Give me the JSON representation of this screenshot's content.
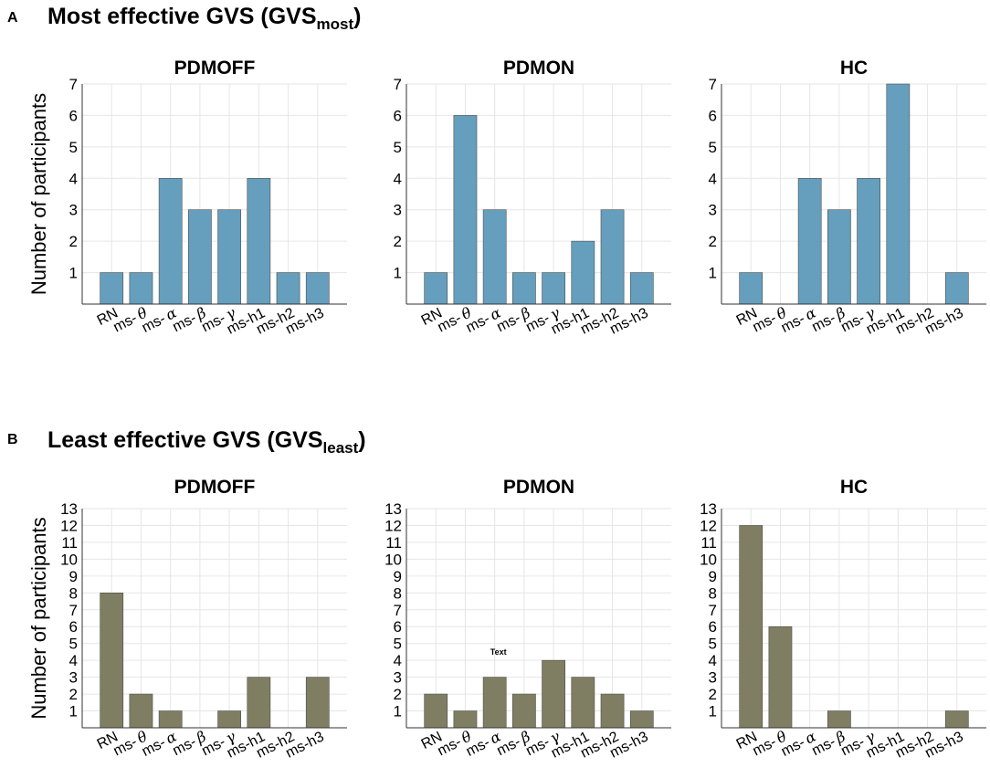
{
  "sections": [
    {
      "letter": "A",
      "title_main": "Most effective GVS (GVS",
      "title_sub": "most",
      "title_close": ")"
    },
    {
      "letter": "B",
      "title_main": "Least effective GVS (GVS",
      "title_sub": "least",
      "title_close": ")"
    }
  ],
  "colors": {
    "most_bar": "#659fbd",
    "least_bar": "#807e62",
    "bar_edge": "#4d4d4d"
  },
  "annotation": "Text",
  "chart_data": [
    {
      "type": "bar",
      "section": "A",
      "title": "PDMOFF",
      "ylabel": "Number of participants",
      "categories": [
        "RN",
        "ms-θ",
        "ms-α",
        "ms-β",
        "ms-γ",
        "ms-h1",
        "ms-h2",
        "ms-h3"
      ],
      "values": [
        1,
        1,
        4,
        3,
        3,
        4,
        1,
        1
      ],
      "ylim": [
        0,
        7
      ],
      "yticks": [
        1,
        2,
        3,
        4,
        5,
        6,
        7
      ],
      "grid": true
    },
    {
      "type": "bar",
      "section": "A",
      "title": "PDMON",
      "ylabel": "",
      "categories": [
        "RN",
        "ms-θ",
        "ms-α",
        "ms-β",
        "ms-γ",
        "ms-h1",
        "ms-h2",
        "ms-h3"
      ],
      "values": [
        1,
        6,
        3,
        1,
        1,
        2,
        3,
        1
      ],
      "ylim": [
        0,
        7
      ],
      "yticks": [
        1,
        2,
        3,
        4,
        5,
        6,
        7
      ],
      "grid": true
    },
    {
      "type": "bar",
      "section": "A",
      "title": "HC",
      "ylabel": "",
      "categories": [
        "RN",
        "ms-θ",
        "ms-α",
        "ms-β",
        "ms-γ",
        "ms-h1",
        "ms-h2",
        "ms-h3"
      ],
      "values": [
        1,
        0,
        4,
        3,
        4,
        7,
        0,
        1
      ],
      "ylim": [
        0,
        7
      ],
      "yticks": [
        1,
        2,
        3,
        4,
        5,
        6,
        7
      ],
      "grid": true
    },
    {
      "type": "bar",
      "section": "B",
      "title": "PDMOFF",
      "ylabel": "Number of participants",
      "categories": [
        "RN",
        "ms-θ",
        "ms-α",
        "ms-β",
        "ms-γ",
        "ms-h1",
        "ms-h2",
        "ms-h3"
      ],
      "values": [
        8,
        2,
        1,
        0,
        1,
        3,
        0,
        3
      ],
      "ylim": [
        0,
        13
      ],
      "yticks": [
        1,
        2,
        3,
        4,
        5,
        6,
        7,
        8,
        9,
        10,
        11,
        12,
        13
      ],
      "grid": true
    },
    {
      "type": "bar",
      "section": "B",
      "title": "PDMON",
      "ylabel": "",
      "categories": [
        "RN",
        "ms-θ",
        "ms-α",
        "ms-β",
        "ms-γ",
        "ms-h1",
        "ms-h2",
        "ms-h3"
      ],
      "values": [
        2,
        1,
        3,
        2,
        4,
        3,
        2,
        1
      ],
      "ylim": [
        0,
        13
      ],
      "yticks": [
        1,
        2,
        3,
        4,
        5,
        6,
        7,
        8,
        9,
        10,
        11,
        12,
        13
      ],
      "grid": true,
      "annotation_at": {
        "category": "ms-α",
        "y": 4.5
      }
    },
    {
      "type": "bar",
      "section": "B",
      "title": "HC",
      "ylabel": "",
      "categories": [
        "RN",
        "ms-θ",
        "ms-α",
        "ms-β",
        "ms-γ",
        "ms-h1",
        "ms-h2",
        "ms-h3"
      ],
      "values": [
        12,
        6,
        0,
        1,
        0,
        0,
        0,
        1
      ],
      "ylim": [
        0,
        13
      ],
      "yticks": [
        1,
        2,
        3,
        4,
        5,
        6,
        7,
        8,
        9,
        10,
        11,
        12,
        13
      ],
      "grid": true
    }
  ]
}
